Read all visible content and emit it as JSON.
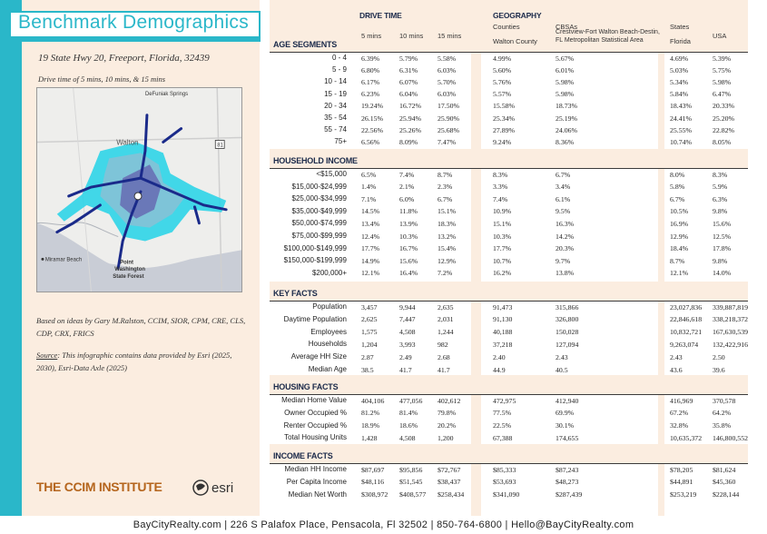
{
  "title": "Benchmark Demographics",
  "address": "19 State Hwy 20, Freeport, Florida, 32439",
  "drive_note": "Drive time of 5 mins, 10 mins, & 15 mins",
  "map": {
    "labels": {
      "defuniak": "DeFuniak Springs",
      "walton": "Walton",
      "miramar": "Miramar Beach",
      "point_washington_1": "Point",
      "point_washington_2": "Washington",
      "point_washington_3": "State Forest",
      "route": "81"
    },
    "colors": {
      "area15": "#2dd4e8",
      "area10": "#7ec4d8",
      "area5": "#6a78b8",
      "roads": "#1a2a8a"
    }
  },
  "credit": "Based on ideas by Gary M.Ralston, CCIM, SIOR, CPM, CRE, CLS, CDP, CRX, FRICS",
  "source_label": "Source",
  "source_text": ": This infographic contains data provided by Esri (2025, 2030), Esri-Data Axle (2025)",
  "ccim_logo": "THE CCIM INSTITUTE",
  "esri_logo": "esri",
  "footer": "BayCityRealty.com | 226 S Palafox Place, Pensacola, Fl 32502 | 850-764-6800 | Hello@BayCityRealty.com",
  "header": {
    "drive_time": "DRIVE TIME",
    "geography": "GEOGRAPHY",
    "counties": "Counties",
    "cbsas": "CBSAs",
    "states": "States",
    "cols": [
      "5 mins",
      "10 mins",
      "15 mins",
      "Walton County",
      "Crestview-Fort Walton Beach-Destin, FL Metropolitan Statistical Area",
      "Florida",
      "USA"
    ]
  },
  "sections": [
    {
      "title": "AGE SEGMENTS",
      "rows": [
        {
          "label": "0 - 4",
          "values": [
            "6.39%",
            "5.79%",
            "5.58%",
            "4.99%",
            "5.67%",
            "4.69%",
            "5.39%"
          ]
        },
        {
          "label": "5 - 9",
          "values": [
            "6.80%",
            "6.31%",
            "6.03%",
            "5.60%",
            "6.01%",
            "5.03%",
            "5.75%"
          ]
        },
        {
          "label": "10 - 14",
          "values": [
            "6.17%",
            "6.07%",
            "5.70%",
            "5.76%",
            "5.98%",
            "5.34%",
            "5.98%"
          ]
        },
        {
          "label": "15 - 19",
          "values": [
            "6.23%",
            "6.04%",
            "6.03%",
            "5.57%",
            "5.98%",
            "5.84%",
            "6.47%"
          ]
        },
        {
          "label": "20 - 34",
          "values": [
            "19.24%",
            "16.72%",
            "17.50%",
            "15.58%",
            "18.73%",
            "18.43%",
            "20.33%"
          ]
        },
        {
          "label": "35 - 54",
          "values": [
            "26.15%",
            "25.94%",
            "25.90%",
            "25.34%",
            "25.19%",
            "24.41%",
            "25.20%"
          ]
        },
        {
          "label": "55 - 74",
          "values": [
            "22.56%",
            "25.26%",
            "25.68%",
            "27.89%",
            "24.06%",
            "25.55%",
            "22.82%"
          ]
        },
        {
          "label": "75+",
          "values": [
            "6.56%",
            "8.09%",
            "7.47%",
            "9.24%",
            "8.36%",
            "10.74%",
            "8.05%"
          ]
        }
      ]
    },
    {
      "title": "HOUSEHOLD INCOME",
      "rows": [
        {
          "label": "<$15,000",
          "values": [
            "6.5%",
            "7.4%",
            "8.7%",
            "8.3%",
            "6.7%",
            "8.0%",
            "8.3%"
          ]
        },
        {
          "label": "$15,000-$24,999",
          "values": [
            "1.4%",
            "2.1%",
            "2.3%",
            "3.3%",
            "3.4%",
            "5.8%",
            "5.9%"
          ]
        },
        {
          "label": "$25,000-$34,999",
          "values": [
            "7.1%",
            "6.0%",
            "6.7%",
            "7.4%",
            "6.1%",
            "6.7%",
            "6.3%"
          ]
        },
        {
          "label": "$35,000-$49,999",
          "values": [
            "14.5%",
            "11.8%",
            "15.1%",
            "10.9%",
            "9.5%",
            "10.5%",
            "9.8%"
          ]
        },
        {
          "label": "$50,000-$74,999",
          "values": [
            "13.4%",
            "13.9%",
            "18.3%",
            "15.1%",
            "16.3%",
            "16.9%",
            "15.6%"
          ]
        },
        {
          "label": "$75,000-$99,999",
          "values": [
            "12.4%",
            "10.3%",
            "13.2%",
            "10.3%",
            "14.2%",
            "12.9%",
            "12.5%"
          ]
        },
        {
          "label": "$100,000-$149,999",
          "values": [
            "17.7%",
            "16.7%",
            "15.4%",
            "17.7%",
            "20.3%",
            "18.4%",
            "17.8%"
          ]
        },
        {
          "label": "$150,000-$199,999",
          "values": [
            "14.9%",
            "15.6%",
            "12.9%",
            "10.7%",
            "9.7%",
            "8.7%",
            "9.8%"
          ]
        },
        {
          "label": "$200,000+",
          "values": [
            "12.1%",
            "16.4%",
            "7.2%",
            "16.2%",
            "13.8%",
            "12.1%",
            "14.0%"
          ]
        }
      ]
    },
    {
      "title": "KEY FACTS",
      "rows": [
        {
          "label": "Population",
          "values": [
            "3,457",
            "9,944",
            "2,635",
            "91,473",
            "315,866",
            "23,027,836",
            "339,887,819"
          ]
        },
        {
          "label": "Daytime Population",
          "values": [
            "2,625",
            "7,447",
            "2,031",
            "91,130",
            "326,800",
            "22,846,618",
            "338,218,372"
          ]
        },
        {
          "label": "Employees",
          "values": [
            "1,575",
            "4,508",
            "1,244",
            "40,188",
            "150,028",
            "10,832,721",
            "167,630,539"
          ]
        },
        {
          "label": "Households",
          "values": [
            "1,204",
            "3,993",
            "982",
            "37,218",
            "127,094",
            "9,263,074",
            "132,422,916"
          ]
        },
        {
          "label": "Average HH Size",
          "values": [
            "2.87",
            "2.49",
            "2.68",
            "2.40",
            "2.43",
            "2.43",
            "2.50"
          ]
        },
        {
          "label": "Median Age",
          "values": [
            "38.5",
            "41.7",
            "41.7",
            "44.9",
            "40.5",
            "43.6",
            "39.6"
          ]
        }
      ]
    },
    {
      "title": "HOUSING FACTS",
      "rows": [
        {
          "label": "Median Home Value",
          "values": [
            "404,106",
            "477,056",
            "402,612",
            "472,975",
            "412,940",
            "416,969",
            "370,578"
          ]
        },
        {
          "label": "Owner Occupied %",
          "values": [
            "81.2%",
            "81.4%",
            "79.8%",
            "77.5%",
            "69.9%",
            "67.2%",
            "64.2%"
          ]
        },
        {
          "label": "Renter Occupied %",
          "values": [
            "18.9%",
            "18.6%",
            "20.2%",
            "22.5%",
            "30.1%",
            "32.8%",
            "35.8%"
          ]
        },
        {
          "label": "Total Housing Units",
          "values": [
            "1,428",
            "4,508",
            "1,200",
            "67,388",
            "174,655",
            "10,635,372",
            "146,800,552"
          ]
        }
      ]
    },
    {
      "title": "INCOME FACTS",
      "rows": [
        {
          "label": "Median HH Income",
          "values": [
            "$87,697",
            "$95,856",
            "$72,767",
            "$85,333",
            "$87,243",
            "$78,205",
            "$81,624"
          ]
        },
        {
          "label": "Per Capita Income",
          "values": [
            "$48,116",
            "$51,545",
            "$38,437",
            "$53,693",
            "$48,273",
            "$44,891",
            "$45,360"
          ]
        },
        {
          "label": "Median Net Worth",
          "values": [
            "$308,972",
            "$408,577",
            "$258,434",
            "$341,090",
            "$287,439",
            "$253,219",
            "$228,144"
          ]
        }
      ]
    }
  ]
}
